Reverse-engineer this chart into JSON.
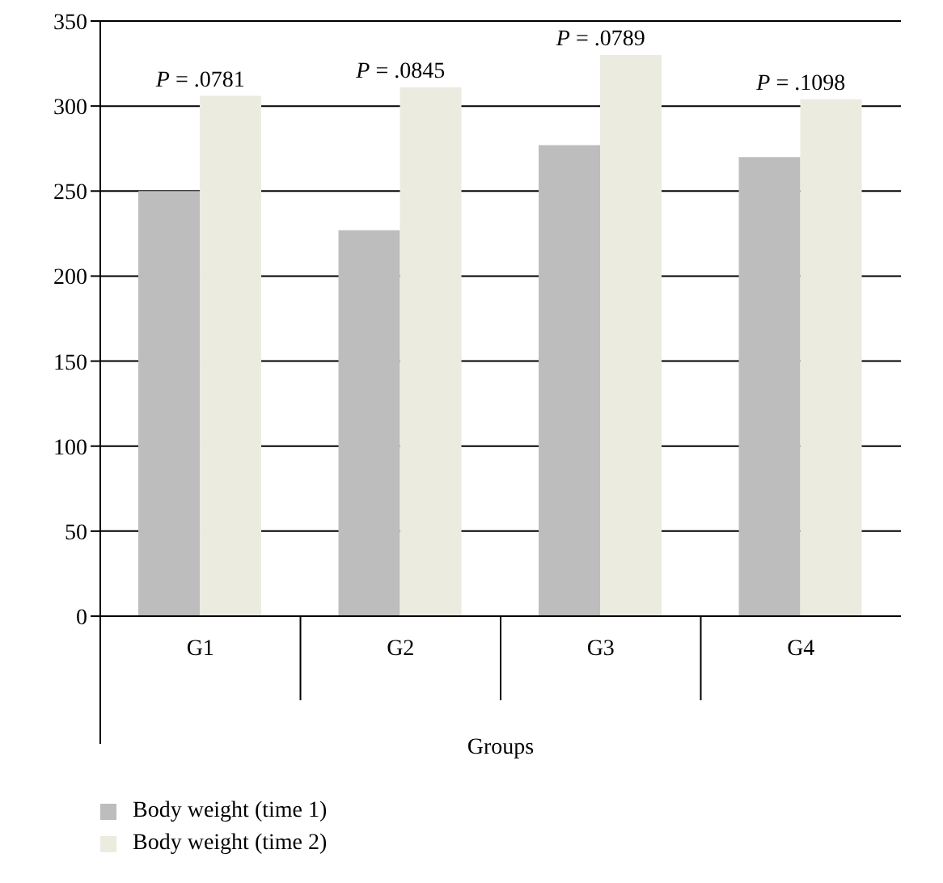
{
  "chart_data": {
    "type": "bar",
    "xlabel": "Groups",
    "categories": [
      "G1",
      "G2",
      "G3",
      "G4"
    ],
    "series": [
      {
        "name": "Body weight (time 1)",
        "color": "#bdbdbd",
        "values": [
          250,
          227,
          277,
          270
        ]
      },
      {
        "name": "Body weight (time 2)",
        "color": "#ebebe0",
        "values": [
          306,
          311,
          330,
          304
        ]
      }
    ],
    "ylim": [
      0,
      350
    ],
    "yticks": [
      0,
      50,
      100,
      150,
      200,
      250,
      300,
      350
    ],
    "grid": "y",
    "legend": "bottom",
    "annotations": [
      {
        "text": "P = .0781",
        "x": "G1",
        "y": 306
      },
      {
        "text": "P = .0845",
        "x": "G2",
        "y": 311
      },
      {
        "text": "P = .0789",
        "x": "G3",
        "y": 330
      },
      {
        "text": "P = .1098",
        "x": "G4",
        "y": 304
      }
    ]
  }
}
